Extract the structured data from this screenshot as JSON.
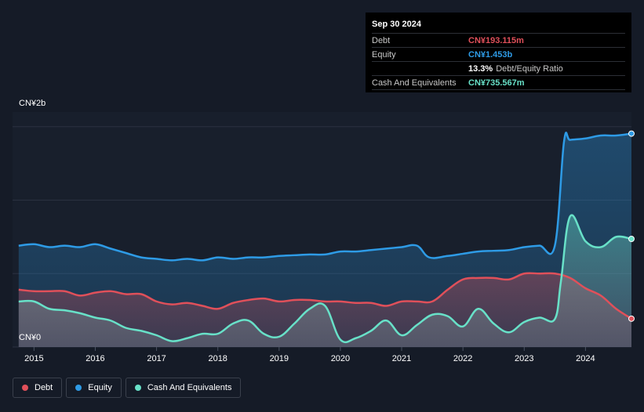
{
  "tooltip": {
    "date": "Sep 30 2024",
    "rows": [
      {
        "label": "Debt",
        "value": "CN¥193.115m",
        "color": "#e0505a"
      },
      {
        "label": "Equity",
        "value": "CN¥1.453b",
        "color": "#2e9be6"
      },
      {
        "label": "",
        "value": "13.3%",
        "suffix": "Debt/Equity Ratio",
        "color": "#ffffff"
      },
      {
        "label": "Cash And Equivalents",
        "value": "CN¥735.567m",
        "color": "#68e1c8"
      }
    ]
  },
  "legend": [
    {
      "label": "Debt",
      "color": "#e0505a"
    },
    {
      "label": "Equity",
      "color": "#2e9be6"
    },
    {
      "label": "Cash And Equivalents",
      "color": "#68e1c8"
    }
  ],
  "chart_data": {
    "type": "area",
    "y_top_label": "CN¥2b",
    "y_bottom_label": "CN¥0",
    "ylim": [
      0,
      1.6
    ],
    "xlim": [
      2014.65,
      2024.75
    ],
    "x_ticks": [
      2015,
      2016,
      2017,
      2018,
      2019,
      2020,
      2021,
      2022,
      2023,
      2024
    ],
    "x_tick_labels": [
      "2015",
      "2016",
      "2017",
      "2018",
      "2019",
      "2020",
      "2021",
      "2022",
      "2023",
      "2024"
    ],
    "y_gridlines": [
      0.5,
      1.0,
      1.5
    ],
    "series": [
      {
        "name": "Equity",
        "color": "#2e9be6",
        "points": [
          [
            2014.75,
            0.69
          ],
          [
            2015.0,
            0.7
          ],
          [
            2015.25,
            0.68
          ],
          [
            2015.5,
            0.69
          ],
          [
            2015.75,
            0.68
          ],
          [
            2016.0,
            0.7
          ],
          [
            2016.25,
            0.67
          ],
          [
            2016.5,
            0.64
          ],
          [
            2016.75,
            0.61
          ],
          [
            2017.0,
            0.6
          ],
          [
            2017.25,
            0.59
          ],
          [
            2017.5,
            0.6
          ],
          [
            2017.75,
            0.59
          ],
          [
            2018.0,
            0.61
          ],
          [
            2018.25,
            0.6
          ],
          [
            2018.5,
            0.61
          ],
          [
            2018.75,
            0.61
          ],
          [
            2019.0,
            0.62
          ],
          [
            2019.25,
            0.625
          ],
          [
            2019.5,
            0.63
          ],
          [
            2019.75,
            0.63
          ],
          [
            2020.0,
            0.65
          ],
          [
            2020.25,
            0.65
          ],
          [
            2020.5,
            0.66
          ],
          [
            2020.75,
            0.67
          ],
          [
            2021.0,
            0.68
          ],
          [
            2021.25,
            0.69
          ],
          [
            2021.45,
            0.61
          ],
          [
            2021.75,
            0.62
          ],
          [
            2022.0,
            0.635
          ],
          [
            2022.25,
            0.65
          ],
          [
            2022.5,
            0.655
          ],
          [
            2022.75,
            0.66
          ],
          [
            2023.0,
            0.68
          ],
          [
            2023.25,
            0.69
          ],
          [
            2023.5,
            0.69
          ],
          [
            2023.65,
            1.4
          ],
          [
            2023.75,
            1.41
          ],
          [
            2024.0,
            1.42
          ],
          [
            2024.25,
            1.44
          ],
          [
            2024.5,
            1.44
          ],
          [
            2024.75,
            1.453
          ]
        ]
      },
      {
        "name": "Debt",
        "color": "#e0505a",
        "points": [
          [
            2014.75,
            0.39
          ],
          [
            2015.0,
            0.38
          ],
          [
            2015.25,
            0.38
          ],
          [
            2015.5,
            0.38
          ],
          [
            2015.75,
            0.35
          ],
          [
            2016.0,
            0.37
          ],
          [
            2016.25,
            0.38
          ],
          [
            2016.5,
            0.36
          ],
          [
            2016.75,
            0.36
          ],
          [
            2017.0,
            0.31
          ],
          [
            2017.25,
            0.29
          ],
          [
            2017.5,
            0.3
          ],
          [
            2017.75,
            0.28
          ],
          [
            2018.0,
            0.26
          ],
          [
            2018.25,
            0.3
          ],
          [
            2018.5,
            0.32
          ],
          [
            2018.75,
            0.33
          ],
          [
            2019.0,
            0.31
          ],
          [
            2019.25,
            0.32
          ],
          [
            2019.5,
            0.32
          ],
          [
            2019.75,
            0.31
          ],
          [
            2020.0,
            0.31
          ],
          [
            2020.25,
            0.3
          ],
          [
            2020.5,
            0.3
          ],
          [
            2020.75,
            0.28
          ],
          [
            2021.0,
            0.31
          ],
          [
            2021.25,
            0.31
          ],
          [
            2021.5,
            0.31
          ],
          [
            2021.75,
            0.39
          ],
          [
            2022.0,
            0.46
          ],
          [
            2022.25,
            0.47
          ],
          [
            2022.5,
            0.47
          ],
          [
            2022.75,
            0.46
          ],
          [
            2023.0,
            0.5
          ],
          [
            2023.25,
            0.5
          ],
          [
            2023.5,
            0.5
          ],
          [
            2023.75,
            0.47
          ],
          [
            2024.0,
            0.4
          ],
          [
            2024.25,
            0.35
          ],
          [
            2024.5,
            0.26
          ],
          [
            2024.75,
            0.193
          ]
        ]
      },
      {
        "name": "Cash And Equivalents",
        "color": "#68e1c8",
        "points": [
          [
            2014.75,
            0.31
          ],
          [
            2015.0,
            0.31
          ],
          [
            2015.25,
            0.26
          ],
          [
            2015.5,
            0.25
          ],
          [
            2015.75,
            0.23
          ],
          [
            2016.0,
            0.2
          ],
          [
            2016.25,
            0.18
          ],
          [
            2016.5,
            0.13
          ],
          [
            2016.75,
            0.11
          ],
          [
            2017.0,
            0.08
          ],
          [
            2017.25,
            0.04
          ],
          [
            2017.5,
            0.06
          ],
          [
            2017.75,
            0.09
          ],
          [
            2018.0,
            0.09
          ],
          [
            2018.25,
            0.16
          ],
          [
            2018.5,
            0.18
          ],
          [
            2018.75,
            0.09
          ],
          [
            2019.0,
            0.07
          ],
          [
            2019.25,
            0.16
          ],
          [
            2019.5,
            0.26
          ],
          [
            2019.75,
            0.28
          ],
          [
            2020.0,
            0.05
          ],
          [
            2020.25,
            0.06
          ],
          [
            2020.5,
            0.11
          ],
          [
            2020.75,
            0.18
          ],
          [
            2021.0,
            0.08
          ],
          [
            2021.25,
            0.15
          ],
          [
            2021.5,
            0.22
          ],
          [
            2021.75,
            0.21
          ],
          [
            2022.0,
            0.14
          ],
          [
            2022.25,
            0.26
          ],
          [
            2022.5,
            0.16
          ],
          [
            2022.75,
            0.1
          ],
          [
            2023.0,
            0.17
          ],
          [
            2023.25,
            0.2
          ],
          [
            2023.5,
            0.19
          ],
          [
            2023.6,
            0.45
          ],
          [
            2023.75,
            0.89
          ],
          [
            2024.0,
            0.72
          ],
          [
            2024.25,
            0.68
          ],
          [
            2024.5,
            0.75
          ],
          [
            2024.75,
            0.736
          ]
        ]
      }
    ]
  }
}
